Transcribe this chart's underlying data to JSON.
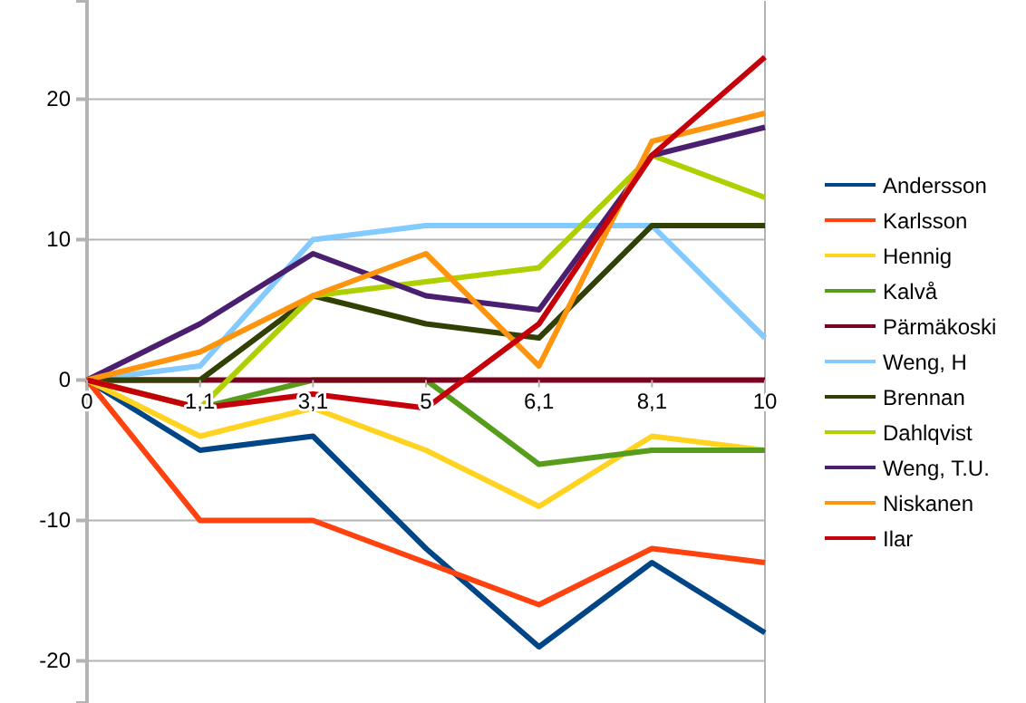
{
  "chart_data": {
    "type": "line",
    "categories": [
      "0",
      "1,1",
      "3,1",
      "5",
      "6,1",
      "8,1",
      "10"
    ],
    "ylim": [
      -23,
      27
    ],
    "yticks": [
      -20,
      -10,
      0,
      10,
      20
    ],
    "grid": "y",
    "legend": "right",
    "marker": "none",
    "line_style": "solid",
    "series": [
      {
        "name": "Andersson",
        "color": "#004586",
        "values": [
          0,
          -5,
          -4,
          -12,
          -19,
          -13,
          -18
        ]
      },
      {
        "name": "Karlsson",
        "color": "#ff420e",
        "values": [
          0,
          -10,
          -10,
          -13,
          -16,
          -12,
          -13
        ]
      },
      {
        "name": "Hennig",
        "color": "#ffd320",
        "values": [
          0,
          -4,
          -2,
          -5,
          -9,
          -4,
          -5
        ]
      },
      {
        "name": "Kalvå",
        "color": "#579d1c",
        "values": [
          0,
          -2,
          0,
          0,
          -6,
          -5,
          -5
        ]
      },
      {
        "name": "Pärmäkoski",
        "color": "#7e0021",
        "values": [
          0,
          0,
          0,
          0,
          0,
          0,
          0
        ]
      },
      {
        "name": "Weng, H",
        "color": "#83caff",
        "values": [
          0,
          1,
          10,
          11,
          11,
          11,
          3
        ]
      },
      {
        "name": "Brennan",
        "color": "#314004",
        "values": [
          0,
          0,
          6,
          4,
          3,
          11,
          11
        ]
      },
      {
        "name": "Dahlqvist",
        "color": "#aecf00",
        "values": [
          0,
          -2,
          6,
          7,
          8,
          16,
          13
        ]
      },
      {
        "name": "Weng, T.U.",
        "color": "#4b1f6f",
        "values": [
          0,
          4,
          9,
          6,
          5,
          16,
          18
        ]
      },
      {
        "name": "Niskanen",
        "color": "#ff950e",
        "values": [
          0,
          2,
          6,
          9,
          1,
          17,
          19
        ]
      },
      {
        "name": "Ilar",
        "color": "#c5000b",
        "values": [
          0,
          -2,
          -1,
          -2,
          4,
          16,
          23
        ]
      }
    ]
  }
}
